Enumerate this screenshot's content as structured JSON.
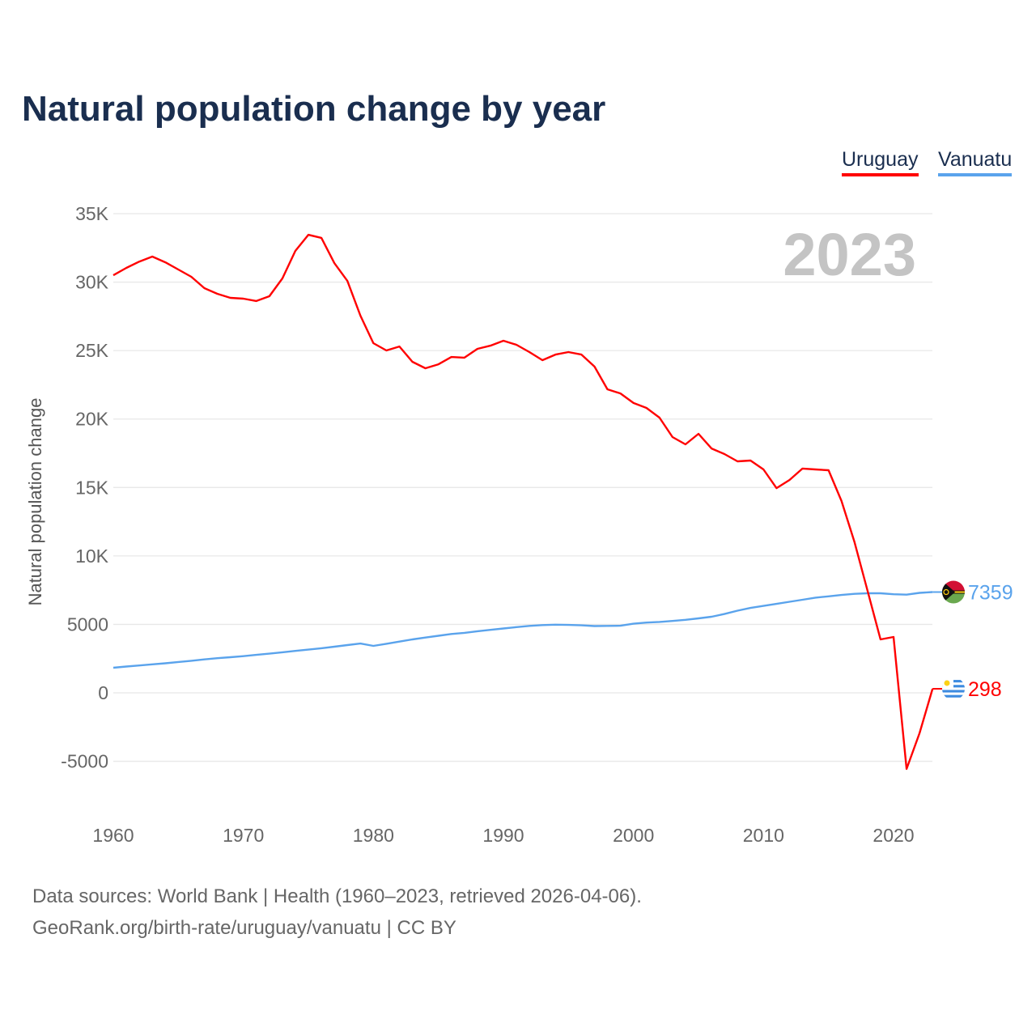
{
  "chart_data": {
    "type": "line",
    "title": "Natural population change by year",
    "ylabel": "Natural population change",
    "xlabel": "",
    "year_label": "2023",
    "ylim": [
      -5000,
      35000
    ],
    "xlim": [
      1960,
      2023
    ],
    "grid": true,
    "legend_placement": "top-right",
    "yticks": [
      -5000,
      0,
      5000,
      10000,
      15000,
      20000,
      25000,
      30000,
      35000
    ],
    "ytick_labels": [
      "-5000",
      "0",
      "5000",
      "10K",
      "15K",
      "20K",
      "25K",
      "30K",
      "35K"
    ],
    "xticks": [
      1960,
      1970,
      1980,
      1990,
      2000,
      2010,
      2020
    ],
    "xtick_labels": [
      "1960",
      "1970",
      "1980",
      "1990",
      "2000",
      "2010",
      "2020"
    ],
    "x": [
      1960,
      1961,
      1962,
      1963,
      1964,
      1965,
      1966,
      1967,
      1968,
      1969,
      1970,
      1971,
      1972,
      1973,
      1974,
      1975,
      1976,
      1977,
      1978,
      1979,
      1980,
      1981,
      1982,
      1983,
      1984,
      1985,
      1986,
      1987,
      1988,
      1989,
      1990,
      1991,
      1992,
      1993,
      1994,
      1995,
      1996,
      1997,
      1998,
      1999,
      2000,
      2001,
      2002,
      2003,
      2004,
      2005,
      2006,
      2007,
      2008,
      2009,
      2010,
      2011,
      2012,
      2013,
      2014,
      2015,
      2016,
      2017,
      2018,
      2019,
      2020,
      2021,
      2022,
      2023
    ],
    "series": [
      {
        "name": "Uruguay",
        "color": "#ff0000",
        "end_label": "298",
        "flag": "uruguay-flag",
        "values": [
          30500,
          31040,
          31500,
          31870,
          31450,
          30920,
          30390,
          29560,
          29150,
          28850,
          28790,
          28620,
          28970,
          30270,
          32280,
          33460,
          33230,
          31390,
          30090,
          27550,
          25540,
          25010,
          25300,
          24180,
          23710,
          24000,
          24530,
          24480,
          25130,
          25360,
          25720,
          25420,
          24890,
          24300,
          24710,
          24890,
          24710,
          23830,
          22170,
          21870,
          21170,
          20810,
          20100,
          18680,
          18150,
          18920,
          17850,
          17440,
          16910,
          16970,
          16320,
          14950,
          15550,
          16380,
          16320,
          16260,
          14010,
          11000,
          7450,
          3900,
          4080,
          -5560,
          -2950,
          298
        ]
      },
      {
        "name": "Vanuatu",
        "color": "#5aa3ec",
        "end_label": "7359",
        "flag": "vanuatu-flag",
        "values": [
          1830,
          1920,
          2000,
          2080,
          2160,
          2250,
          2340,
          2440,
          2530,
          2600,
          2680,
          2770,
          2860,
          2960,
          3060,
          3160,
          3260,
          3370,
          3490,
          3600,
          3430,
          3580,
          3740,
          3900,
          4040,
          4170,
          4300,
          4380,
          4500,
          4600,
          4700,
          4800,
          4890,
          4950,
          4980,
          4960,
          4930,
          4880,
          4890,
          4900,
          5050,
          5130,
          5180,
          5250,
          5330,
          5440,
          5560,
          5760,
          6000,
          6200,
          6350,
          6500,
          6650,
          6800,
          6950,
          7050,
          7150,
          7230,
          7270,
          7270,
          7200,
          7170,
          7300,
          7359
        ]
      }
    ]
  },
  "legend": {
    "items": [
      "Uruguay",
      "Vanuatu"
    ]
  },
  "footer": {
    "line1": "Data sources: World Bank | Health (1960–2023, retrieved 2026-04-06).",
    "line2": "GeoRank.org/birth-rate/uruguay/vanuatu | CC BY"
  }
}
